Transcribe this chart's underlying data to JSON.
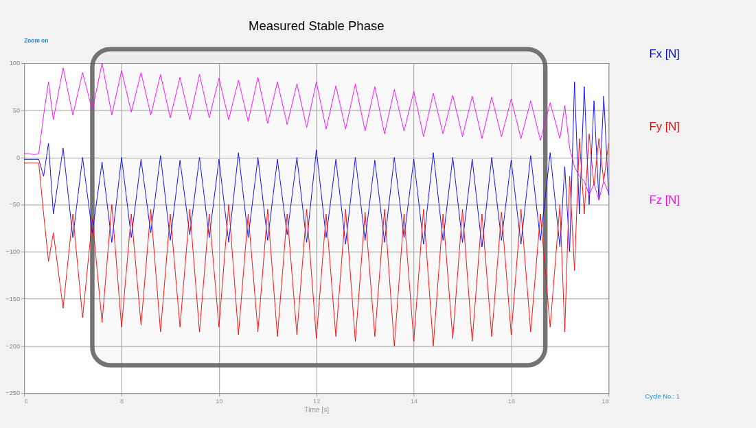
{
  "chart_data": {
    "type": "line",
    "title": "Measured Stable Phase",
    "xlabel": "Time [s]",
    "annotations": [
      "Zoom on",
      "Cycle No.: 1"
    ],
    "x": [
      6.0,
      6.1,
      6.2,
      6.3,
      6.4,
      6.5,
      6.6,
      6.8,
      7.0,
      7.2,
      7.4,
      7.6,
      7.8,
      8.0,
      8.2,
      8.4,
      8.6,
      8.8,
      9.0,
      9.2,
      9.4,
      9.6,
      9.8,
      10.0,
      10.2,
      10.4,
      10.6,
      10.8,
      11.0,
      11.2,
      11.4,
      11.6,
      11.8,
      12.0,
      12.2,
      12.4,
      12.6,
      12.8,
      13.0,
      13.2,
      13.4,
      13.6,
      13.8,
      14.0,
      14.2,
      14.4,
      14.6,
      14.8,
      15.0,
      15.2,
      15.4,
      15.6,
      15.8,
      16.0,
      16.2,
      16.4,
      16.6,
      16.8,
      17.0,
      17.1,
      17.2,
      17.3,
      17.4,
      17.5,
      17.6,
      17.7,
      17.8,
      17.9,
      18.0
    ],
    "series": [
      {
        "name": "Fx [N]",
        "color": "#0000ff",
        "values": [
          -2,
          -2,
          -2,
          -2,
          -20,
          15,
          -60,
          10,
          -85,
          0,
          -80,
          -5,
          -90,
          0,
          -85,
          -2,
          -80,
          2,
          -88,
          -3,
          -82,
          0,
          -85,
          -2,
          -90,
          5,
          -85,
          0,
          -88,
          -2,
          -82,
          0,
          -90,
          8,
          -85,
          -2,
          -92,
          0,
          -88,
          -3,
          -90,
          0,
          -85,
          -2,
          -92,
          5,
          -88,
          0,
          -90,
          -2,
          -95,
          0,
          -88,
          -3,
          -92,
          2,
          -88,
          5,
          -95,
          -10,
          -100,
          80,
          -60,
          75,
          -50,
          60,
          -45,
          65,
          -40
        ]
      },
      {
        "name": "Fy [N]",
        "color": "#ff0000",
        "values": [
          -6,
          -6,
          -6,
          -6,
          -60,
          -110,
          -80,
          -160,
          -60,
          -170,
          -65,
          -175,
          -50,
          -180,
          -60,
          -178,
          -55,
          -185,
          -60,
          -180,
          -55,
          -185,
          -60,
          -180,
          -50,
          -188,
          -60,
          -185,
          -55,
          -190,
          -60,
          -188,
          -55,
          -192,
          -60,
          -190,
          -55,
          -195,
          -58,
          -190,
          -55,
          -200,
          -60,
          -195,
          -55,
          -200,
          -60,
          -192,
          -55,
          -195,
          -60,
          -190,
          -58,
          -188,
          -55,
          -185,
          -60,
          -180,
          -50,
          -185,
          -20,
          -120,
          20,
          -60,
          25,
          -30,
          20,
          -25,
          15
        ]
      },
      {
        "name": "Fz [N]",
        "color": "#ff00ff",
        "values": [
          4,
          4,
          3,
          4,
          45,
          80,
          40,
          95,
          45,
          90,
          50,
          100,
          45,
          92,
          48,
          90,
          45,
          88,
          42,
          85,
          40,
          88,
          42,
          84,
          40,
          82,
          38,
          85,
          36,
          80,
          35,
          78,
          32,
          80,
          30,
          76,
          30,
          78,
          28,
          75,
          25,
          72,
          28,
          70,
          22,
          68,
          25,
          66,
          22,
          65,
          20,
          64,
          22,
          62,
          20,
          60,
          18,
          58,
          20,
          55,
          10,
          -10,
          -20,
          -25,
          -40,
          -28,
          -45,
          -25,
          -38
        ]
      }
    ],
    "xlim": [
      6,
      18
    ],
    "xticks": [
      6,
      8,
      10,
      12,
      14,
      16,
      18
    ],
    "ylim": [
      -250,
      100
    ],
    "yticks": [
      -250,
      -200,
      -150,
      -100,
      -50,
      0,
      50,
      100
    ],
    "grid": true,
    "legend": "right",
    "marker": "none",
    "line_style": "solid",
    "bands": [
      {
        "axis": "x",
        "from": 7.4,
        "to": 16.7,
        "label": null,
        "color": "#666666"
      }
    ]
  }
}
